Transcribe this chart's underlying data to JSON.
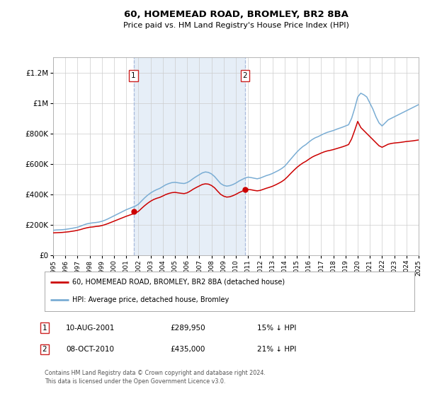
{
  "title": "60, HOMEMEAD ROAD, BROMLEY, BR2 8BA",
  "subtitle": "Price paid vs. HM Land Registry's House Price Index (HPI)",
  "background_color": "#ffffff",
  "plot_bg_color": "#ffffff",
  "shaded_region_color": "#dce8f5",
  "grid_color": "#cccccc",
  "yticks": [
    0,
    200000,
    400000,
    600000,
    800000,
    1000000,
    1200000
  ],
  "ytick_labels": [
    "£0",
    "£200K",
    "£400K",
    "£600K",
    "£800K",
    "£1M",
    "£1.2M"
  ],
  "hpi_color": "#7aadd4",
  "price_color": "#cc0000",
  "sale1_year": 2001.6,
  "sale1_price": 289950,
  "sale2_year": 2010.75,
  "sale2_price": 435000,
  "legend_house_label": "60, HOMEMEAD ROAD, BROMLEY, BR2 8BA (detached house)",
  "legend_hpi_label": "HPI: Average price, detached house, Bromley",
  "footer": "Contains HM Land Registry data © Crown copyright and database right 2024.\nThis data is licensed under the Open Government Licence v3.0.",
  "hpi_data_x": [
    1995,
    1995.25,
    1995.5,
    1995.75,
    1996,
    1996.25,
    1996.5,
    1996.75,
    1997,
    1997.25,
    1997.5,
    1997.75,
    1998,
    1998.25,
    1998.5,
    1998.75,
    1999,
    1999.25,
    1999.5,
    1999.75,
    2000,
    2000.25,
    2000.5,
    2000.75,
    2001,
    2001.25,
    2001.5,
    2001.75,
    2002,
    2002.25,
    2002.5,
    2002.75,
    2003,
    2003.25,
    2003.5,
    2003.75,
    2004,
    2004.25,
    2004.5,
    2004.75,
    2005,
    2005.25,
    2005.5,
    2005.75,
    2006,
    2006.25,
    2006.5,
    2006.75,
    2007,
    2007.25,
    2007.5,
    2007.75,
    2008,
    2008.25,
    2008.5,
    2008.75,
    2009,
    2009.25,
    2009.5,
    2009.75,
    2010,
    2010.25,
    2010.5,
    2010.75,
    2011,
    2011.25,
    2011.5,
    2011.75,
    2012,
    2012.25,
    2012.5,
    2012.75,
    2013,
    2013.25,
    2013.5,
    2013.75,
    2014,
    2014.25,
    2014.5,
    2014.75,
    2015,
    2015.25,
    2015.5,
    2015.75,
    2016,
    2016.25,
    2016.5,
    2016.75,
    2017,
    2017.25,
    2017.5,
    2017.75,
    2018,
    2018.25,
    2018.5,
    2018.75,
    2019,
    2019.25,
    2019.5,
    2019.75,
    2020,
    2020.25,
    2020.5,
    2020.75,
    2021,
    2021.25,
    2021.5,
    2021.75,
    2022,
    2022.25,
    2022.5,
    2022.75,
    2023,
    2023.25,
    2023.5,
    2023.75,
    2024,
    2024.25,
    2024.5,
    2024.75,
    2025
  ],
  "hpi_data_y": [
    165000,
    167000,
    168000,
    169000,
    171000,
    174000,
    177000,
    181000,
    185000,
    192000,
    200000,
    207000,
    211000,
    214000,
    216000,
    219000,
    224000,
    231000,
    240000,
    250000,
    260000,
    270000,
    280000,
    290000,
    300000,
    308000,
    316000,
    324000,
    336000,
    357000,
    377000,
    395000,
    410000,
    422000,
    432000,
    440000,
    452000,
    464000,
    472000,
    478000,
    480000,
    477000,
    474000,
    472000,
    478000,
    490000,
    505000,
    518000,
    530000,
    542000,
    548000,
    545000,
    535000,
    518000,
    495000,
    472000,
    460000,
    455000,
    458000,
    465000,
    475000,
    488000,
    498000,
    508000,
    514000,
    511000,
    507000,
    503000,
    508000,
    516000,
    524000,
    530000,
    538000,
    548000,
    558000,
    570000,
    585000,
    608000,
    632000,
    655000,
    678000,
    698000,
    715000,
    728000,
    745000,
    760000,
    772000,
    780000,
    790000,
    800000,
    808000,
    814000,
    820000,
    828000,
    835000,
    842000,
    850000,
    858000,
    900000,
    965000,
    1040000,
    1065000,
    1055000,
    1040000,
    1000000,
    960000,
    910000,
    870000,
    850000,
    870000,
    890000,
    900000,
    910000,
    920000,
    930000,
    940000,
    950000,
    960000,
    970000,
    980000,
    990000
  ],
  "price_data_x": [
    1995,
    1995.25,
    1995.5,
    1995.75,
    1996,
    1996.25,
    1996.5,
    1996.75,
    1997,
    1997.25,
    1997.5,
    1997.75,
    1998,
    1998.25,
    1998.5,
    1998.75,
    1999,
    1999.25,
    1999.5,
    1999.75,
    2000,
    2000.25,
    2000.5,
    2000.75,
    2001,
    2001.25,
    2001.5,
    2001.75,
    2002,
    2002.25,
    2002.5,
    2002.75,
    2003,
    2003.25,
    2003.5,
    2003.75,
    2004,
    2004.25,
    2004.5,
    2004.75,
    2005,
    2005.25,
    2005.5,
    2005.75,
    2006,
    2006.25,
    2006.5,
    2006.75,
    2007,
    2007.25,
    2007.5,
    2007.75,
    2008,
    2008.25,
    2008.5,
    2008.75,
    2009,
    2009.25,
    2009.5,
    2009.75,
    2010,
    2010.25,
    2010.5,
    2010.75,
    2011,
    2011.25,
    2011.5,
    2011.75,
    2012,
    2012.25,
    2012.5,
    2012.75,
    2013,
    2013.25,
    2013.5,
    2013.75,
    2014,
    2014.25,
    2014.5,
    2014.75,
    2015,
    2015.25,
    2015.5,
    2015.75,
    2016,
    2016.25,
    2016.5,
    2016.75,
    2017,
    2017.25,
    2017.5,
    2017.75,
    2018,
    2018.25,
    2018.5,
    2018.75,
    2019,
    2019.25,
    2019.5,
    2019.75,
    2020,
    2020.25,
    2020.5,
    2020.75,
    2021,
    2021.25,
    2021.5,
    2021.75,
    2022,
    2022.25,
    2022.5,
    2022.75,
    2023,
    2023.25,
    2023.5,
    2023.75,
    2024,
    2024.25,
    2024.5,
    2024.75,
    2025
  ],
  "price_data_y": [
    148000,
    149000,
    150000,
    151000,
    153000,
    155000,
    158000,
    161000,
    165000,
    170000,
    176000,
    181000,
    185000,
    187000,
    190000,
    192000,
    196000,
    202000,
    209000,
    217000,
    225000,
    233000,
    241000,
    249000,
    257000,
    264000,
    271000,
    278000,
    289000,
    308000,
    326000,
    342000,
    356000,
    367000,
    375000,
    381000,
    390000,
    400000,
    407000,
    412000,
    414000,
    411000,
    408000,
    406000,
    411000,
    422000,
    435000,
    446000,
    456000,
    466000,
    470000,
    468000,
    459000,
    444000,
    422000,
    401000,
    389000,
    383000,
    385000,
    392000,
    401000,
    412000,
    421000,
    429000,
    433000,
    431000,
    427000,
    424000,
    427000,
    434000,
    441000,
    447000,
    454000,
    463000,
    473000,
    484000,
    498000,
    517000,
    538000,
    558000,
    577000,
    593000,
    607000,
    618000,
    632000,
    645000,
    655000,
    663000,
    672000,
    680000,
    686000,
    690000,
    695000,
    701000,
    707000,
    713000,
    720000,
    728000,
    765000,
    820000,
    880000,
    840000,
    820000,
    800000,
    780000,
    760000,
    740000,
    720000,
    710000,
    720000,
    730000,
    735000,
    738000,
    740000,
    742000,
    745000,
    748000,
    750000,
    752000,
    755000,
    758000
  ]
}
